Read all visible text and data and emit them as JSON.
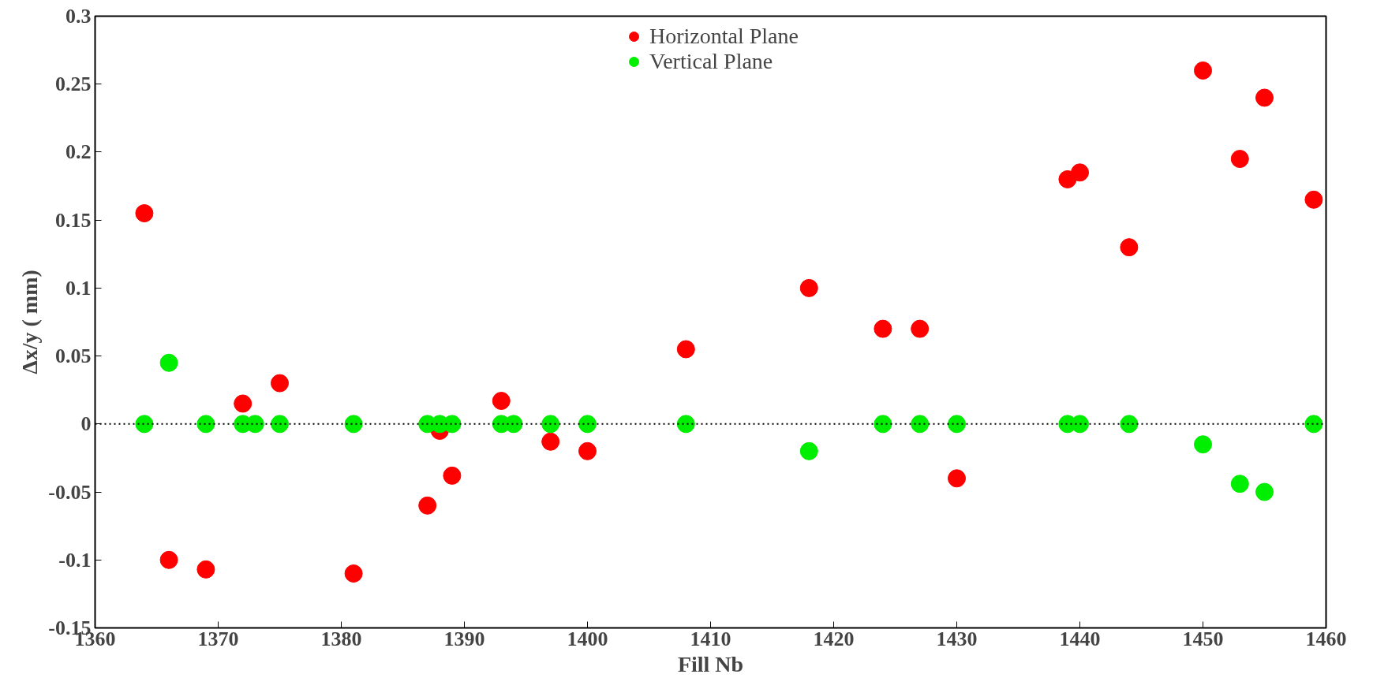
{
  "chart_data": {
    "type": "scatter",
    "xlabel": "Fill Nb",
    "ylabel": "Δx/y ( mm)",
    "xlim": [
      1360,
      1460
    ],
    "xticks": [
      1360,
      1370,
      1380,
      1390,
      1400,
      1410,
      1420,
      1430,
      1440,
      1450,
      1460
    ],
    "ylim": [
      -0.15,
      0.3
    ],
    "yticks": [
      -0.15,
      -0.1,
      -0.05,
      0,
      0.05,
      0.1,
      0.15,
      0.2,
      0.25,
      0.3
    ],
    "grid": false,
    "legend": "top",
    "marker": "circle",
    "ref_lines": [
      {
        "axis": "y",
        "value": 0,
        "line_style": "dotted",
        "color": "#000000"
      }
    ],
    "series": [
      {
        "name": "Horizontal Plane",
        "color": "#ff0000",
        "x": [
          1364,
          1366,
          1369,
          1372,
          1375,
          1381,
          1387,
          1388,
          1389,
          1393,
          1397,
          1400,
          1408,
          1418,
          1424,
          1427,
          1430,
          1439,
          1440,
          1444,
          1450,
          1453,
          1455,
          1459
        ],
        "values": [
          0.155,
          -0.1,
          -0.107,
          0.015,
          0.03,
          -0.11,
          -0.06,
          -0.005,
          -0.038,
          0.017,
          -0.013,
          -0.02,
          0.055,
          0.1,
          0.07,
          0.07,
          -0.04,
          0.18,
          0.185,
          0.13,
          0.26,
          0.195,
          0.24,
          0.165
        ]
      },
      {
        "name": "Vertical Plane",
        "color": "#00ee00",
        "x": [
          1364,
          1366,
          1369,
          1372,
          1373,
          1375,
          1381,
          1387,
          1388,
          1389,
          1393,
          1394,
          1397,
          1400,
          1408,
          1418,
          1424,
          1427,
          1430,
          1439,
          1440,
          1444,
          1450,
          1453,
          1455,
          1459
        ],
        "values": [
          0,
          0.045,
          0,
          0,
          0,
          0,
          0,
          0,
          0,
          0,
          0,
          0,
          0,
          0,
          0,
          -0.02,
          0,
          0,
          0,
          0,
          0,
          0,
          -0.015,
          -0.044,
          -0.05,
          0
        ]
      }
    ]
  }
}
